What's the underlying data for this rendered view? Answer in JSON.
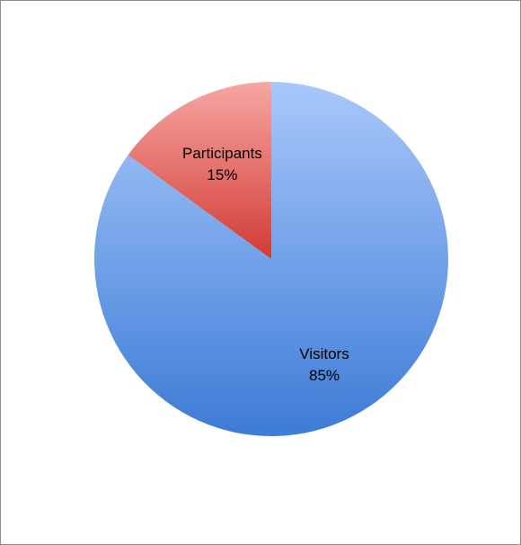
{
  "chart_data": {
    "type": "pie",
    "title": "",
    "start_angle_deg": 0,
    "direction": "clockwise",
    "legend": "none",
    "series": [
      {
        "values": [
          85,
          15
        ],
        "categories": [
          "Visitors",
          "Participants"
        ],
        "labels": [
          "85%",
          "15%"
        ],
        "colors": {
          "Visitors": [
            "#a8c8fa",
            "#3d7bd6"
          ],
          "Participants": [
            "#f7a7a3",
            "#d23a35"
          ]
        }
      }
    ]
  }
}
